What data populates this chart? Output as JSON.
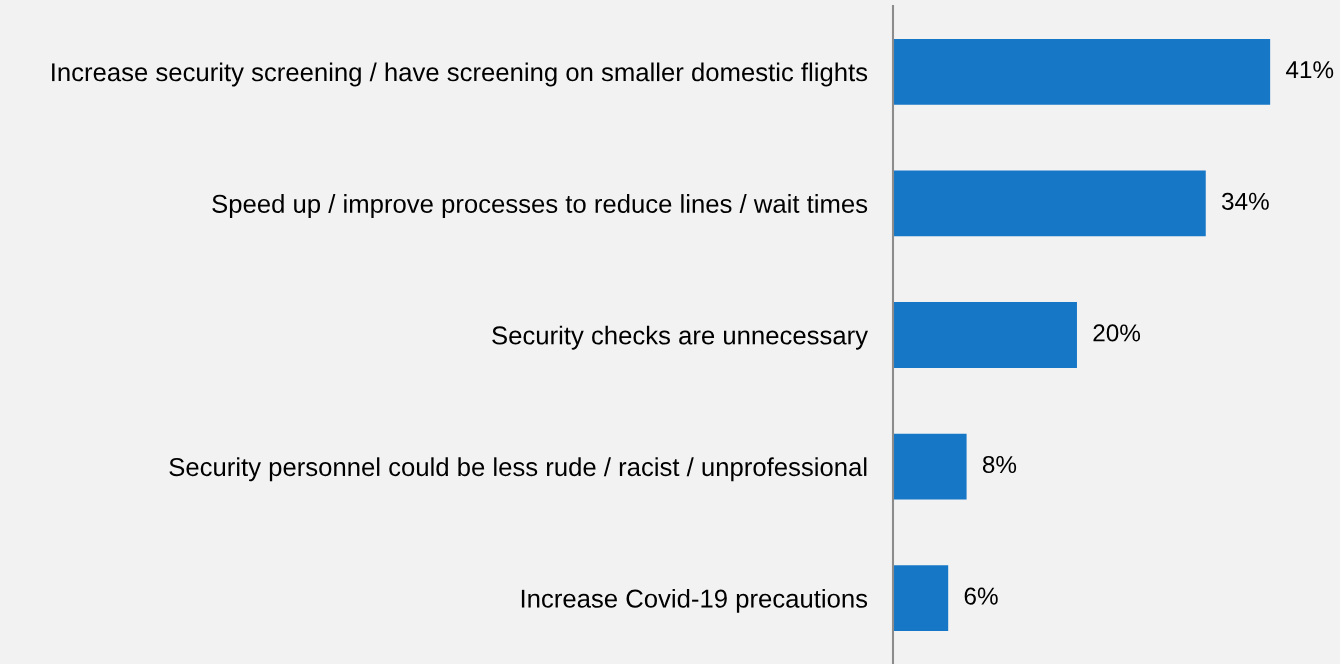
{
  "chart_data": {
    "type": "bar",
    "orientation": "horizontal",
    "categories": [
      "Increase security screening / have screening on smaller domestic flights",
      "Speed up / improve processes to reduce lines / wait times",
      "Security checks are unnecessary",
      "Security personnel could be less rude / racist / unprofessional",
      "Increase Covid-19 precautions"
    ],
    "series": [
      {
        "color": "#1677c7",
        "values": [
          41,
          34,
          20,
          8,
          6
        ],
        "value_labels": [
          "41%",
          "34%",
          "20%",
          "8%",
          "6%"
        ]
      }
    ],
    "tick_labels": "y",
    "grid": false
  }
}
